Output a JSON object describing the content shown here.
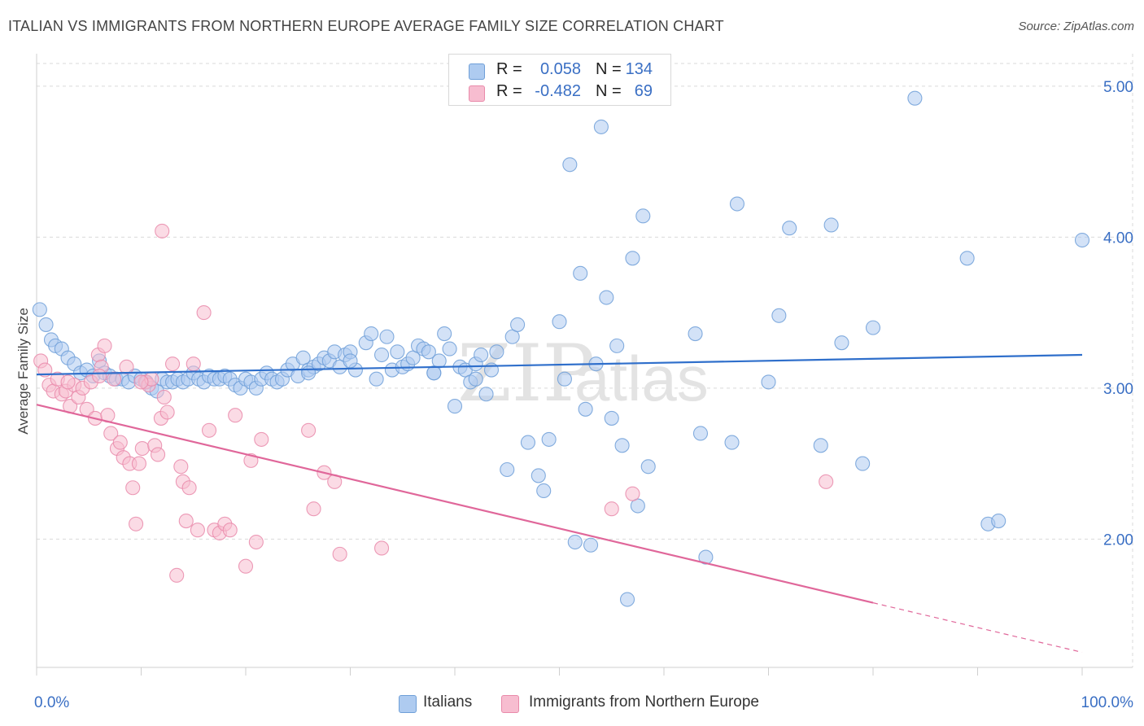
{
  "header": {
    "title": "ITALIAN VS IMMIGRANTS FROM NORTHERN EUROPE AVERAGE FAMILY SIZE CORRELATION CHART",
    "source": "Source: ZipAtlas.com"
  },
  "legend_top": {
    "rows": [
      {
        "r_label": "R =",
        "r_value": "0.058",
        "n_label": "N =",
        "n_value": "134"
      },
      {
        "r_label": "R =",
        "r_value": "-0.482",
        "n_label": "N =",
        "n_value": "69"
      }
    ]
  },
  "colors": {
    "italians_fill": "#aecbf0",
    "italians_stroke": "#6f9fd8",
    "italians_line": "#2f6fcb",
    "immigrants_fill": "#f7bdd0",
    "immigrants_stroke": "#e98aaa",
    "immigrants_line": "#e0679a",
    "value_text": "#3a6fc4",
    "grid": "#d9d9d9"
  },
  "watermark": {
    "zip": "ZIP",
    "atlas": "atlas"
  },
  "chart_data": {
    "type": "scatter",
    "title": "ITALIAN VS IMMIGRANTS FROM NORTHERN EUROPE AVERAGE FAMILY SIZE CORRELATION CHART",
    "xlabel": "",
    "ylabel": "Average Family Size",
    "xlim": [
      0,
      100
    ],
    "ylim": [
      1.15,
      5.15
    ],
    "x_tick_labels": [
      "0.0%",
      "100.0%"
    ],
    "y_ticks": [
      2.0,
      3.0,
      4.0,
      5.0
    ],
    "y_tick_labels": [
      "2.00",
      "3.00",
      "4.00",
      "5.00"
    ],
    "grid": true,
    "legend_position": "bottom",
    "series": [
      {
        "name": "Italians",
        "r": 0.058,
        "n": 134,
        "trend": {
          "x": [
            0,
            100
          ],
          "y": [
            3.09,
            3.22
          ]
        },
        "points": [
          [
            0.3,
            3.52
          ],
          [
            0.9,
            3.42
          ],
          [
            1.4,
            3.32
          ],
          [
            1.8,
            3.28
          ],
          [
            2.4,
            3.26
          ],
          [
            3.0,
            3.2
          ],
          [
            3.6,
            3.16
          ],
          [
            4.2,
            3.1
          ],
          [
            4.8,
            3.12
          ],
          [
            5.4,
            3.08
          ],
          [
            6.0,
            3.18
          ],
          [
            6.5,
            3.1
          ],
          [
            7.0,
            3.08
          ],
          [
            7.6,
            3.06
          ],
          [
            8.2,
            3.06
          ],
          [
            8.8,
            3.04
          ],
          [
            9.4,
            3.08
          ],
          [
            10.0,
            3.06
          ],
          [
            10.5,
            3.04
          ],
          [
            11.0,
            3.0
          ],
          [
            11.5,
            2.98
          ],
          [
            12.0,
            3.06
          ],
          [
            12.5,
            3.04
          ],
          [
            13.0,
            3.04
          ],
          [
            13.5,
            3.06
          ],
          [
            14.0,
            3.04
          ],
          [
            14.5,
            3.06
          ],
          [
            15.0,
            3.1
          ],
          [
            15.5,
            3.06
          ],
          [
            16.0,
            3.04
          ],
          [
            16.5,
            3.08
          ],
          [
            17.0,
            3.06
          ],
          [
            17.5,
            3.06
          ],
          [
            18.0,
            3.08
          ],
          [
            18.5,
            3.06
          ],
          [
            19.0,
            3.02
          ],
          [
            19.5,
            3.0
          ],
          [
            20.0,
            3.06
          ],
          [
            20.5,
            3.04
          ],
          [
            21.0,
            3.0
          ],
          [
            21.5,
            3.06
          ],
          [
            22.0,
            3.1
          ],
          [
            22.5,
            3.06
          ],
          [
            23.0,
            3.04
          ],
          [
            23.5,
            3.06
          ],
          [
            24.0,
            3.12
          ],
          [
            24.5,
            3.16
          ],
          [
            25.0,
            3.08
          ],
          [
            25.5,
            3.2
          ],
          [
            26.0,
            3.12
          ],
          [
            26.5,
            3.14
          ],
          [
            27.0,
            3.16
          ],
          [
            27.5,
            3.2
          ],
          [
            28.0,
            3.18
          ],
          [
            28.5,
            3.24
          ],
          [
            29.0,
            3.14
          ],
          [
            29.5,
            3.22
          ],
          [
            30.0,
            3.24
          ],
          [
            30.5,
            3.12
          ],
          [
            31.5,
            3.3
          ],
          [
            32.0,
            3.36
          ],
          [
            32.5,
            3.06
          ],
          [
            33.0,
            3.22
          ],
          [
            33.5,
            3.34
          ],
          [
            34.0,
            3.12
          ],
          [
            34.5,
            3.24
          ],
          [
            35.0,
            3.14
          ],
          [
            35.5,
            3.16
          ],
          [
            36.0,
            3.2
          ],
          [
            36.5,
            3.28
          ],
          [
            37.0,
            3.26
          ],
          [
            37.5,
            3.24
          ],
          [
            38.0,
            3.1
          ],
          [
            38.5,
            3.18
          ],
          [
            39.0,
            3.36
          ],
          [
            39.5,
            3.26
          ],
          [
            40.0,
            2.88
          ],
          [
            40.5,
            3.14
          ],
          [
            41.0,
            3.12
          ],
          [
            41.5,
            3.04
          ],
          [
            42.0,
            3.16
          ],
          [
            42.5,
            3.22
          ],
          [
            43.0,
            2.96
          ],
          [
            43.5,
            3.12
          ],
          [
            44.0,
            3.24
          ],
          [
            45.0,
            2.46
          ],
          [
            45.5,
            3.34
          ],
          [
            46.0,
            3.42
          ],
          [
            47.0,
            2.64
          ],
          [
            48.0,
            2.42
          ],
          [
            48.5,
            2.32
          ],
          [
            49.0,
            2.66
          ],
          [
            50.0,
            3.44
          ],
          [
            50.5,
            3.06
          ],
          [
            51.0,
            4.48
          ],
          [
            51.5,
            1.98
          ],
          [
            52.0,
            3.76
          ],
          [
            52.5,
            2.86
          ],
          [
            53.0,
            1.96
          ],
          [
            53.5,
            3.16
          ],
          [
            54.0,
            4.73
          ],
          [
            54.5,
            3.6
          ],
          [
            55.0,
            2.8
          ],
          [
            55.5,
            3.28
          ],
          [
            56.0,
            2.62
          ],
          [
            56.5,
            1.6
          ],
          [
            57.0,
            3.86
          ],
          [
            57.5,
            2.22
          ],
          [
            58.0,
            4.14
          ],
          [
            58.5,
            2.48
          ],
          [
            63.0,
            3.36
          ],
          [
            63.5,
            2.7
          ],
          [
            64.0,
            1.88
          ],
          [
            66.5,
            2.64
          ],
          [
            67.0,
            4.22
          ],
          [
            70.0,
            3.04
          ],
          [
            71.0,
            3.48
          ],
          [
            72.0,
            4.06
          ],
          [
            75.0,
            2.62
          ],
          [
            76.0,
            4.08
          ],
          [
            77.0,
            3.3
          ],
          [
            79.0,
            2.5
          ],
          [
            80.0,
            3.4
          ],
          [
            84.0,
            4.92
          ],
          [
            89.0,
            3.86
          ],
          [
            91.0,
            2.1
          ],
          [
            92.0,
            2.12
          ],
          [
            100.0,
            3.98
          ],
          [
            38.0,
            3.1
          ],
          [
            42.0,
            3.06
          ],
          [
            30.0,
            3.18
          ],
          [
            26.0,
            3.1
          ]
        ]
      },
      {
        "name": "Immigrants from Northern Europe",
        "r": -0.482,
        "n": 69,
        "trend": {
          "x": [
            0,
            100
          ],
          "y": [
            2.89,
            1.25
          ],
          "solid_to_x": 80
        },
        "points": [
          [
            0.4,
            3.18
          ],
          [
            0.8,
            3.12
          ],
          [
            1.2,
            3.02
          ],
          [
            1.6,
            2.98
          ],
          [
            2.0,
            3.06
          ],
          [
            2.4,
            2.96
          ],
          [
            2.8,
            2.98
          ],
          [
            3.2,
            2.88
          ],
          [
            3.6,
            3.02
          ],
          [
            4.0,
            2.94
          ],
          [
            4.4,
            3.0
          ],
          [
            4.8,
            2.86
          ],
          [
            5.2,
            3.04
          ],
          [
            5.6,
            2.8
          ],
          [
            5.9,
            3.22
          ],
          [
            6.2,
            3.14
          ],
          [
            6.5,
            3.28
          ],
          [
            6.8,
            2.82
          ],
          [
            7.1,
            2.7
          ],
          [
            7.4,
            3.06
          ],
          [
            7.7,
            2.6
          ],
          [
            8.0,
            2.64
          ],
          [
            8.3,
            2.54
          ],
          [
            8.6,
            3.14
          ],
          [
            8.9,
            2.5
          ],
          [
            9.2,
            2.34
          ],
          [
            9.5,
            2.1
          ],
          [
            9.8,
            2.5
          ],
          [
            10.1,
            2.6
          ],
          [
            10.4,
            3.04
          ],
          [
            10.7,
            3.02
          ],
          [
            11.0,
            3.06
          ],
          [
            11.3,
            2.62
          ],
          [
            11.6,
            2.56
          ],
          [
            11.9,
            2.8
          ],
          [
            12.2,
            2.94
          ],
          [
            12.5,
            2.84
          ],
          [
            13.0,
            3.16
          ],
          [
            13.4,
            1.76
          ],
          [
            13.8,
            2.48
          ],
          [
            14.0,
            2.38
          ],
          [
            14.3,
            2.12
          ],
          [
            14.6,
            2.34
          ],
          [
            15.0,
            3.16
          ],
          [
            15.4,
            2.06
          ],
          [
            16.0,
            3.5
          ],
          [
            16.5,
            2.72
          ],
          [
            17.0,
            2.06
          ],
          [
            17.5,
            2.04
          ],
          [
            18.0,
            2.1
          ],
          [
            18.5,
            2.06
          ],
          [
            19.0,
            2.82
          ],
          [
            20.0,
            1.82
          ],
          [
            20.5,
            2.52
          ],
          [
            21.0,
            1.98
          ],
          [
            21.5,
            2.66
          ],
          [
            26.0,
            2.72
          ],
          [
            26.5,
            2.2
          ],
          [
            27.5,
            2.44
          ],
          [
            28.5,
            2.38
          ],
          [
            29.0,
            1.9
          ],
          [
            33.0,
            1.94
          ],
          [
            12.0,
            4.04
          ],
          [
            10.0,
            3.04
          ],
          [
            6.0,
            3.08
          ],
          [
            3.0,
            3.04
          ],
          [
            55.0,
            2.2
          ],
          [
            57.0,
            2.3
          ],
          [
            75.5,
            2.38
          ]
        ]
      }
    ]
  }
}
